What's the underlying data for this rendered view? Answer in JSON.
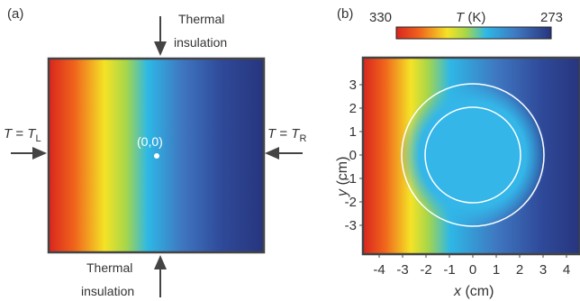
{
  "panel_a": {
    "label": "(a)",
    "top_note_line1": "Thermal",
    "top_note_line2": "insulation",
    "bottom_note_line1": "Thermal",
    "bottom_note_line2": "insulation",
    "left_bc_T": "T",
    "left_bc_eq": " = ",
    "left_bc_TL": "T",
    "left_bc_sub": "L",
    "right_bc_T": "T",
    "right_bc_eq": " = ",
    "right_bc_TR": "T",
    "right_bc_sub": "R",
    "origin_label": "(0,0)"
  },
  "panel_b": {
    "label": "(b)",
    "colorbar_min_label": "330",
    "colorbar_title_T": "T",
    "colorbar_title_unit": " (K)",
    "colorbar_max_label": "273",
    "x_ticks": [
      "-4",
      "-3",
      "-2",
      "-1",
      "0",
      "1",
      "2",
      "3",
      "4"
    ],
    "y_ticks": [
      "3",
      "2",
      "1",
      "0",
      "-1",
      "-2",
      "-3"
    ],
    "xlabel_var": "x",
    "xlabel_unit": " (cm)",
    "ylabel_var": "y",
    "ylabel_unit": " (cm)"
  },
  "colors": {
    "hot": "#e8251e",
    "warm": "#f4e526",
    "mid": "#2eb6e6",
    "cold": "#27367f",
    "frame": "#444444",
    "ring": "#ffffff"
  }
}
